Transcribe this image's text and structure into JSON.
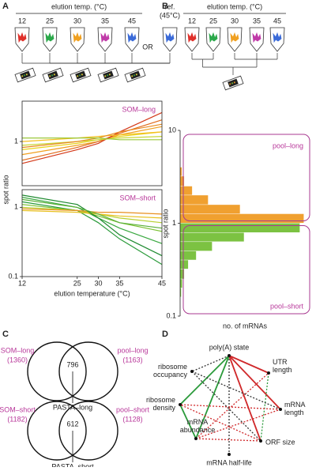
{
  "figure": {
    "panel_a": {
      "label": "A",
      "heading": "elution temp. (°C)",
      "temps": [
        12,
        25,
        30,
        35,
        45
      ],
      "or": "OR",
      "ref": "ref.",
      "ref_temp": "(45°C)"
    },
    "panel_b": {
      "label": "B",
      "heading": "elution temp. (°C)",
      "temps": [
        12,
        25,
        30,
        35,
        45
      ]
    },
    "tube_colors": [
      "#e0302a",
      "#2aa84a",
      "#f0a020",
      "#c03aa8",
      "#3a6ad8"
    ],
    "panel_c": {
      "label": "C",
      "long": {
        "left": "SOM–long",
        "left_count": "(1360)",
        "right": "pool–long",
        "right_count": "(1163)",
        "overlap": 796,
        "name": "PASTA–long"
      },
      "short": {
        "left": "SOM–short",
        "left_count": "(1182)",
        "right": "pool–short",
        "right_count": "(1128)",
        "overlap": 612,
        "name": "PASTA–short"
      }
    },
    "panel_d": {
      "label": "D",
      "nodes": [
        "poly(A) state",
        "UTR length",
        "mRNA length",
        "ORF size",
        "mRNA half-life",
        "mRNA abundance",
        "ribosome density",
        "ribosome occupancy"
      ],
      "edges": [
        {
          "from": 0,
          "to": 6,
          "color": "#2a9a3a",
          "dashed": false
        },
        {
          "from": 0,
          "to": 5,
          "color": "#2a9a3a",
          "dashed": false
        },
        {
          "from": 6,
          "to": 5,
          "color": "#2a9a3a",
          "dashed": false
        },
        {
          "from": 0,
          "to": 1,
          "color": "#d0282a",
          "dashed": false
        },
        {
          "from": 0,
          "to": 2,
          "color": "#d0282a",
          "dashed": false
        },
        {
          "from": 0,
          "to": 3,
          "color": "#d0282a",
          "dashed": false
        },
        {
          "from": 0,
          "to": 4,
          "color": "#333333",
          "dashed": true
        },
        {
          "from": 0,
          "to": 7,
          "color": "#333333",
          "dashed": true
        },
        {
          "from": 1,
          "to": 3,
          "color": "#2a9a3a",
          "dashed": true
        },
        {
          "from": 2,
          "to": 6,
          "color": "#d0282a",
          "dashed": true
        },
        {
          "from": 3,
          "to": 6,
          "color": "#d0282a",
          "dashed": true
        },
        {
          "from": 5,
          "to": 2,
          "color": "#d0282a",
          "dashed": true
        },
        {
          "from": 5,
          "to": 1,
          "color": "#d0282a",
          "dashed": true
        },
        {
          "from": 5,
          "to": 3,
          "color": "#d0282a",
          "dashed": true
        },
        {
          "from": 7,
          "to": 3,
          "color": "#333333",
          "dashed": true
        },
        {
          "from": 7,
          "to": 2,
          "color": "#333333",
          "dashed": true
        }
      ]
    }
  },
  "chart_data": [
    {
      "type": "line",
      "annotation": "SOM–long",
      "ylabel": "spot ratio",
      "log_y": true,
      "x": [
        12,
        25,
        30,
        35,
        45
      ],
      "xlim": [
        12,
        45
      ],
      "ylim": [
        0.3,
        3
      ],
      "yticks": [
        1
      ],
      "series": [
        {
          "color": "#e8d21c",
          "values": [
            0.8,
            0.95,
            1.05,
            1.15,
            1.3
          ]
        },
        {
          "color": "#f0a020",
          "values": [
            0.7,
            0.9,
            1.0,
            1.2,
            1.5
          ]
        },
        {
          "color": "#e06a1a",
          "values": [
            0.6,
            0.85,
            1.0,
            1.25,
            1.8
          ]
        },
        {
          "color": "#d43a1a",
          "values": [
            0.55,
            0.8,
            0.95,
            1.3,
            2.2
          ]
        },
        {
          "color": "#c8d838",
          "values": [
            0.9,
            1.0,
            1.05,
            1.1,
            1.15
          ]
        },
        {
          "color": "#f5c020",
          "values": [
            1.0,
            1.1,
            1.15,
            1.2,
            1.3
          ]
        },
        {
          "color": "#e88a20",
          "values": [
            0.85,
            1.0,
            1.1,
            1.3,
            1.6
          ]
        },
        {
          "color": "#9ac83a",
          "values": [
            1.1,
            1.1,
            1.1,
            1.05,
            1.05
          ]
        }
      ]
    },
    {
      "type": "line",
      "annotation": "SOM–short",
      "xlabel": "elution temperature (°C)",
      "log_y": true,
      "x": [
        12,
        25,
        30,
        35,
        45
      ],
      "xlim": [
        12,
        45
      ],
      "xticks": [
        12,
        25,
        30,
        35,
        45
      ],
      "ylim": [
        0.1,
        1.8
      ],
      "yticks": [
        0.1,
        1
      ],
      "series": [
        {
          "color": "#2a9a3a",
          "values": [
            1.2,
            0.9,
            0.6,
            0.35,
            0.15
          ]
        },
        {
          "color": "#3aa840",
          "values": [
            1.4,
            1.0,
            0.7,
            0.5,
            0.3
          ]
        },
        {
          "color": "#7ac030",
          "values": [
            1.1,
            0.9,
            0.75,
            0.6,
            0.45
          ]
        },
        {
          "color": "#b8d030",
          "values": [
            1.0,
            0.9,
            0.8,
            0.7,
            0.6
          ]
        },
        {
          "color": "#e8c020",
          "values": [
            0.9,
            0.85,
            0.8,
            0.75,
            0.7
          ]
        },
        {
          "color": "#e89020",
          "values": [
            0.95,
            0.9,
            0.85,
            0.85,
            0.8
          ]
        },
        {
          "color": "#1e8a30",
          "values": [
            1.5,
            1.1,
            0.7,
            0.4,
            0.2
          ]
        },
        {
          "color": "#5ab038",
          "values": [
            1.3,
            1.0,
            0.8,
            0.6,
            0.5
          ]
        }
      ]
    },
    {
      "type": "histogram",
      "orientation": "horizontal",
      "log_y": true,
      "ylabel": "spot ratio",
      "xlabel": "no. of mRNAs",
      "ylim": [
        0.1,
        10
      ],
      "yticks": [
        0.1,
        1,
        10
      ],
      "xlim": [
        0,
        650
      ],
      "bins": [
        0.16,
        0.2,
        0.25,
        0.32,
        0.4,
        0.5,
        0.63,
        0.79,
        1,
        1.26,
        1.58,
        2,
        2.5,
        3.2,
        4
      ],
      "counts": [
        5,
        10,
        20,
        40,
        80,
        160,
        320,
        600,
        620,
        300,
        140,
        60,
        20,
        8
      ],
      "color_below": "#7cc242",
      "color_above": "#f0a030",
      "boxes": [
        "pool–long",
        "pool–short"
      ],
      "box_color": "#a83a90"
    }
  ]
}
